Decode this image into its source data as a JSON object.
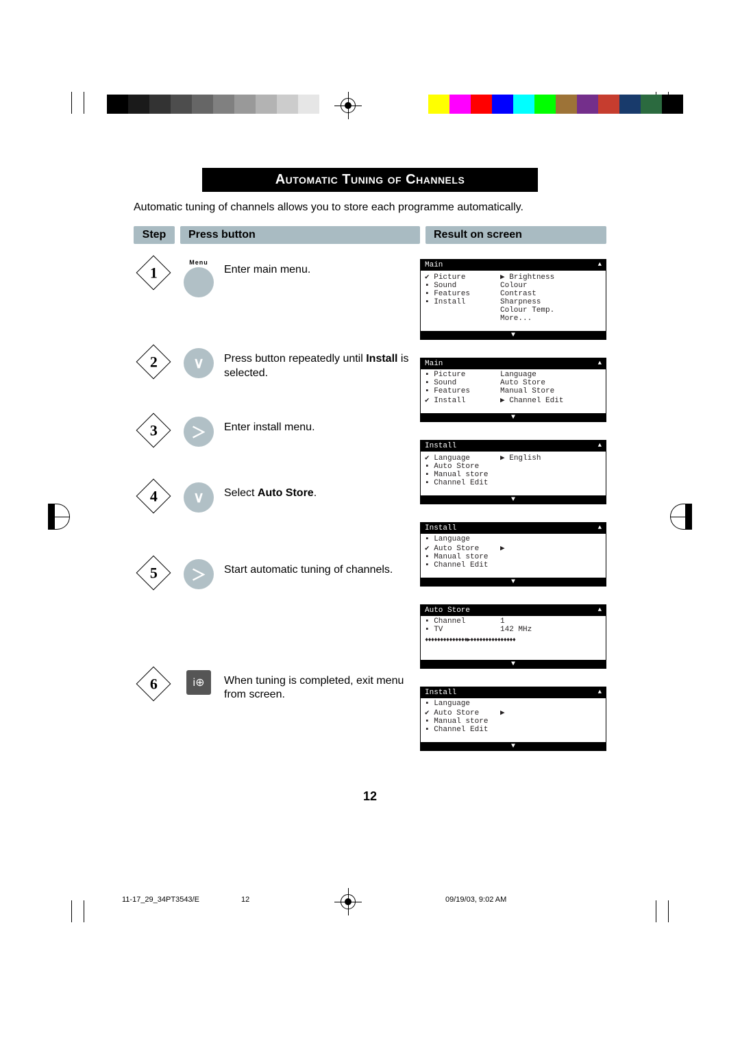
{
  "title": "Automatic Tuning of Channels",
  "intro": "Automatic tuning of channels allows you to store each programme automatically.",
  "headers": {
    "step": "Step",
    "press": "Press button",
    "result": "Result on screen"
  },
  "steps": [
    {
      "num": "1",
      "button": {
        "type": "circle",
        "label": "Menu",
        "glyph": ""
      },
      "desc_plain": "Enter main menu."
    },
    {
      "num": "2",
      "button": {
        "type": "circle",
        "glyph": "∨"
      },
      "desc_pre": "Press button repeatedly until ",
      "desc_bold": "Install",
      "desc_post": " is selected."
    },
    {
      "num": "3",
      "button": {
        "type": "circle",
        "glyph": "＞"
      },
      "desc_plain": "Enter install menu."
    },
    {
      "num": "4",
      "button": {
        "type": "circle",
        "glyph": "∨"
      },
      "desc_pre": "Select ",
      "desc_bold": "Auto Store",
      "desc_post": "."
    },
    {
      "num": "5",
      "button": {
        "type": "circle",
        "glyph": "＞"
      },
      "desc_plain": "Start automatic tuning of channels."
    },
    {
      "num": "6",
      "button": {
        "type": "square",
        "glyph": "i⊕"
      },
      "desc_plain": "When tuning is completed, exit menu from screen."
    }
  ],
  "osd": [
    {
      "title": "Main",
      "rows": [
        {
          "l": "✔ Picture",
          "r": "▶ Brightness"
        },
        {
          "l": "▪ Sound",
          "r": "  Colour"
        },
        {
          "l": "▪ Features",
          "r": "  Contrast"
        },
        {
          "l": "▪ Install",
          "r": "  Sharpness"
        },
        {
          "l": "",
          "r": "  Colour Temp."
        },
        {
          "l": "",
          "r": "  More..."
        }
      ]
    },
    {
      "title": "Main",
      "rows": [
        {
          "l": "▪ Picture",
          "r": "  Language"
        },
        {
          "l": "▪ Sound",
          "r": "  Auto Store"
        },
        {
          "l": "▪ Features",
          "r": "  Manual Store"
        },
        {
          "l": "✔ Install",
          "r": "▶ Channel Edit"
        }
      ]
    },
    {
      "title": "Install",
      "rows": [
        {
          "l": "✔ Language",
          "r": "▶ English"
        },
        {
          "l": "▪ Auto Store",
          "r": ""
        },
        {
          "l": "▪ Manual store",
          "r": ""
        },
        {
          "l": "▪ Channel Edit",
          "r": ""
        }
      ]
    },
    {
      "title": "Install",
      "rows": [
        {
          "l": "▪ Language",
          "r": ""
        },
        {
          "l": "✔ Auto Store",
          "r": "▶"
        },
        {
          "l": "▪ Manual store",
          "r": ""
        },
        {
          "l": "▪ Channel Edit",
          "r": ""
        }
      ]
    },
    {
      "title": "Auto Store",
      "rows": [
        {
          "l": "▪ Channel",
          "r": "       1"
        },
        {
          "l": "▪ TV",
          "r": " 142 MHz"
        }
      ],
      "progress": "♦♦♦♦♦♦♦♦♦♦♦♦♦♦▶♦♦♦♦♦♦♦♦♦♦♦♦♦♦♦"
    },
    {
      "title": "Install",
      "rows": [
        {
          "l": "▪ Language",
          "r": ""
        },
        {
          "l": "✔ Auto Store",
          "r": "▶"
        },
        {
          "l": "▪ Manual store",
          "r": ""
        },
        {
          "l": "▪ Channel Edit",
          "r": ""
        }
      ]
    }
  ],
  "grays": [
    "#000000",
    "#1a1a1a",
    "#333333",
    "#4d4d4d",
    "#666666",
    "#808080",
    "#999999",
    "#b3b3b3",
    "#cccccc",
    "#e6e6e6",
    "#ffffff"
  ],
  "colors": [
    "#ffff00",
    "#ff00ff",
    "#ff0000",
    "#0000ff",
    "#00ffff",
    "#00ff00",
    "#9d7337",
    "#742f8b",
    "#c63d2f",
    "#183a6b",
    "#2b6a3f",
    "#000000"
  ],
  "page_number": "12",
  "footer_left": "11-17_29_34PT3543/E",
  "footer_mid": "12",
  "footer_right": "09/19/03, 9:02 AM"
}
